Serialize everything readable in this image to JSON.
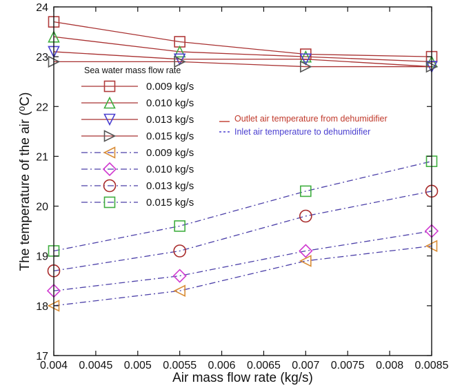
{
  "chart_data": {
    "type": "line",
    "xlabel": "Air mass flow rate (kg/s)",
    "ylabel": "The temperature of the air (⁰C)",
    "xlim": [
      0.004,
      0.0085
    ],
    "ylim": [
      17,
      24
    ],
    "xticks": [
      0.004,
      0.0045,
      0.005,
      0.0055,
      0.006,
      0.0065,
      0.007,
      0.0075,
      0.008,
      0.0085
    ],
    "xtick_labels": [
      "0.004",
      "0.0045",
      "0.005",
      "0.0055",
      "0.006",
      "0.0065",
      "0.007",
      "0.0075",
      "0.008",
      "0.0085"
    ],
    "yticks": [
      17,
      18,
      19,
      20,
      21,
      22,
      23,
      24
    ],
    "ytick_labels": [
      "17",
      "18",
      "19",
      "20",
      "21",
      "22",
      "23",
      "24"
    ],
    "x": [
      0.004,
      0.0055,
      0.007,
      0.0085
    ],
    "legend_title": "Sea water mass flow rate",
    "legend_position": "upper-left inside plot",
    "grid": false,
    "series": [
      {
        "name": "0.009 kg/s",
        "group": "outlet",
        "marker": "square",
        "color": "#b03a3a",
        "line": "solid",
        "values": [
          23.7,
          23.3,
          23.05,
          23.0
        ]
      },
      {
        "name": "0.010 kg/s",
        "group": "outlet",
        "marker": "triangle-up",
        "color": "#3fae3f",
        "line": "solid",
        "values": [
          23.4,
          23.1,
          23.0,
          22.9
        ]
      },
      {
        "name": "0.013 kg/s",
        "group": "outlet",
        "marker": "triangle-down",
        "color": "#4a3fd0",
        "line": "solid",
        "values": [
          23.1,
          22.95,
          22.95,
          22.8
        ]
      },
      {
        "name": "0.015 kg/s",
        "group": "outlet",
        "marker": "triangle-right",
        "color": "#555555",
        "line": "solid",
        "values": [
          22.9,
          22.9,
          22.8,
          22.8
        ]
      },
      {
        "name": "0.009 kg/s",
        "group": "inlet",
        "marker": "triangle-left",
        "color": "#d98c35",
        "line": "dashdot",
        "values": [
          18.0,
          18.3,
          18.9,
          19.2
        ]
      },
      {
        "name": "0.010 kg/s",
        "group": "inlet",
        "marker": "diamond",
        "color": "#d03ad0",
        "line": "dashdot",
        "values": [
          18.3,
          18.6,
          19.1,
          19.5
        ]
      },
      {
        "name": "0.013 kg/s",
        "group": "inlet",
        "marker": "circle",
        "color": "#a82a2a",
        "line": "dashdot",
        "values": [
          18.7,
          19.1,
          19.8,
          20.3
        ]
      },
      {
        "name": "0.015 kg/s",
        "group": "inlet",
        "marker": "square",
        "color": "#3fae3f",
        "line": "dashdot",
        "values": [
          19.1,
          19.6,
          20.3,
          20.9
        ]
      }
    ],
    "annotations": [
      {
        "text": "Outlet air temperature from dehumidifier",
        "line": "solid",
        "color": "#c0392b"
      },
      {
        "text": "Inlet air temperature to dehumidifier",
        "line": "dashed",
        "color": "#4a3fd0"
      }
    ],
    "colors": {
      "outlet_line": "#a83030",
      "inlet_line": "#4b3fa8",
      "axis": "#111111"
    }
  }
}
